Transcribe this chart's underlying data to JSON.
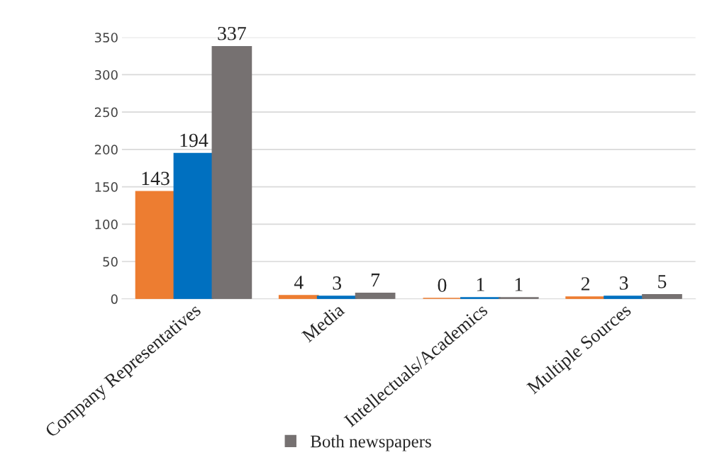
{
  "chart_data": {
    "type": "bar",
    "categories": [
      "Company Representatives",
      "Media",
      "Intellectuals/Academics",
      "Multiple Sources"
    ],
    "series": [
      {
        "color": "#ed7d31",
        "values": [
          143,
          4,
          0,
          2
        ]
      },
      {
        "color": "#0070c0",
        "values": [
          194,
          3,
          1,
          3
        ]
      },
      {
        "name": "Both newspapers",
        "color": "#767171",
        "values": [
          337,
          7,
          1,
          5
        ]
      }
    ],
    "ylim": [
      0,
      350
    ],
    "yticks": [
      0,
      50,
      100,
      150,
      200,
      250,
      300,
      350
    ],
    "grid": "y",
    "legend": "bottom",
    "data_labels": true
  }
}
